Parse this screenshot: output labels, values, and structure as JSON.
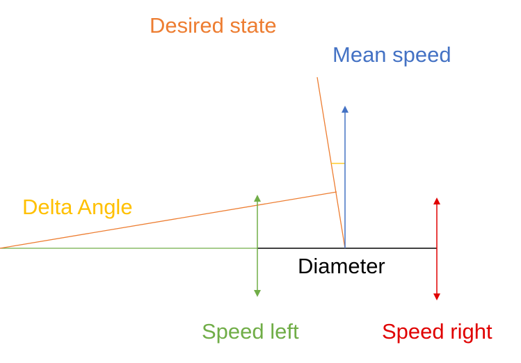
{
  "labels": {
    "desired_state": "Desired state",
    "mean_speed": "Mean speed",
    "delta_angle": "Delta Angle",
    "diameter": "Diameter",
    "speed_left": "Speed left",
    "speed_right": "Speed right"
  },
  "colors": {
    "desired_state": "#ED7D31",
    "mean_speed": "#4472C4",
    "delta_angle": "#FFC000",
    "diameter": "#000000",
    "speed_left": "#70AD47",
    "speed_right": "#E00000",
    "baseline": "#70AD47"
  }
}
